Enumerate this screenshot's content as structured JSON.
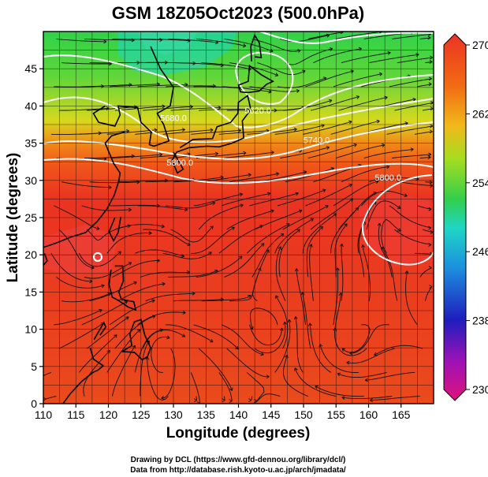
{
  "title": "GSM 18Z05Oct2023 (500.0hPa)",
  "map": {
    "xlabel": "Longitude (degrees)",
    "ylabel": "Latitude  (degrees)",
    "lon_ticks": [
      110,
      115,
      120,
      125,
      130,
      135,
      140,
      145,
      150,
      155,
      160,
      165
    ],
    "lat_ticks": [
      0,
      5,
      10,
      15,
      20,
      25,
      30,
      35,
      40,
      45
    ],
    "lon_range": [
      110,
      170
    ],
    "lat_range": [
      0,
      50
    ],
    "grid": true,
    "coastlines": true,
    "field": "temperature",
    "contour_field": "geopotential height",
    "streamlines": true
  },
  "contour_labels": [
    {
      "text": "5800.0",
      "lon": 131,
      "lat": 32
    },
    {
      "text": "5800.0",
      "lon": 163,
      "lat": 30
    },
    {
      "text": "5740.0",
      "lon": 152,
      "lat": 35
    },
    {
      "text": "5680.0",
      "lon": 130,
      "lat": 38
    },
    {
      "text": "5620.0",
      "lon": 143,
      "lat": 39
    }
  ],
  "colorbar": {
    "ticks": [
      "270",
      "262",
      "254",
      "246",
      "238",
      "230"
    ],
    "min": 230,
    "max": 270,
    "colors": [
      "#e0137a",
      "#9b12b7",
      "#1e1dbd",
      "#1c8ede",
      "#1ed6c4",
      "#33cf4a",
      "#a6dd1f",
      "#f2b81a",
      "#f26a13",
      "#ec3324"
    ]
  },
  "credits": {
    "line1": "Drawing by DCL (https://www.gfd-dennou.org/library/dcl/)",
    "line2": "Data from http://database.rish.kyoto-u.ac.jp/arch/jmadata/"
  }
}
